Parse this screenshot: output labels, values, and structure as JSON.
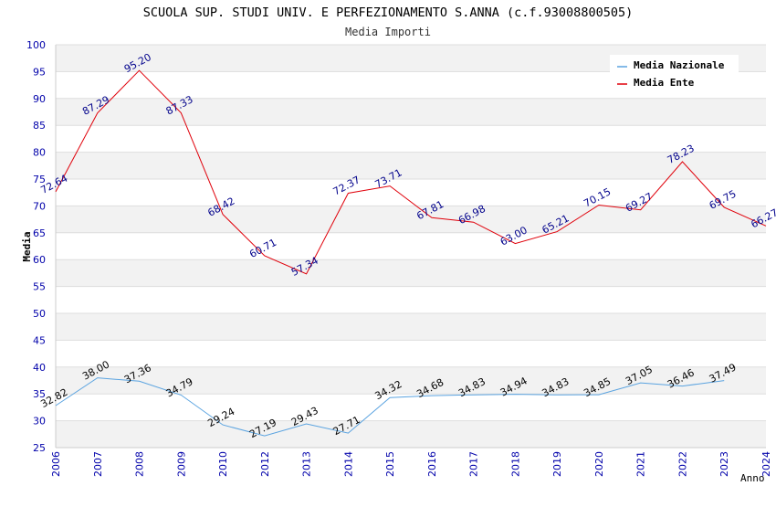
{
  "chart_data": {
    "type": "line",
    "title": "SCUOLA SUP. STUDI UNIV. E PERFEZIONAMENTO S.ANNA (c.f.93008800505)",
    "subtitle": "Media Importi",
    "xlabel": "Anno",
    "ylabel": "Media",
    "ylim": [
      25,
      100
    ],
    "y_ticks": [
      "25",
      "30",
      "35",
      "40",
      "45",
      "50",
      "55",
      "60",
      "65",
      "70",
      "75",
      "80",
      "85",
      "90",
      "95",
      "100"
    ],
    "grid": true,
    "legend_position": "top-right",
    "x": [
      "2006",
      "2007",
      "2008",
      "2009",
      "2010",
      "2012",
      "2013",
      "2014",
      "2015",
      "2016",
      "2017",
      "2018",
      "2019",
      "2020",
      "2021",
      "2022",
      "2023",
      "2024"
    ],
    "series": [
      {
        "name": "Media Nazionale",
        "color": "#5aa3e0",
        "label_color": "#000000",
        "values": [
          32.82,
          38.0,
          37.36,
          34.79,
          29.24,
          27.19,
          29.43,
          27.71,
          34.32,
          34.68,
          34.83,
          34.94,
          34.83,
          34.85,
          37.05,
          36.46,
          37.49,
          null
        ],
        "labels": [
          "32.82",
          "38.00",
          "37.36",
          "34.79",
          "29.24",
          "27.19",
          "29.43",
          "27.71",
          "34.32",
          "34.68",
          "34.83",
          "34.94",
          "34.83",
          "34.85",
          "37.05",
          "36.46",
          "37.49",
          ""
        ]
      },
      {
        "name": "Media Ente",
        "color": "#e0000a",
        "label_color": "#00008b",
        "values": [
          72.64,
          87.29,
          95.2,
          87.33,
          68.42,
          60.71,
          57.34,
          72.37,
          73.71,
          67.81,
          66.98,
          63.0,
          65.21,
          70.15,
          69.27,
          78.23,
          69.75,
          66.27
        ],
        "labels": [
          "72.64",
          "87.29",
          "95.20",
          "87.33",
          "68.42",
          "60.71",
          "57.34",
          "72.37",
          "73.71",
          "67.81",
          "66.98",
          "63.00",
          "65.21",
          "70.15",
          "69.27",
          "78.23",
          "69.75",
          "66.27"
        ]
      }
    ]
  }
}
